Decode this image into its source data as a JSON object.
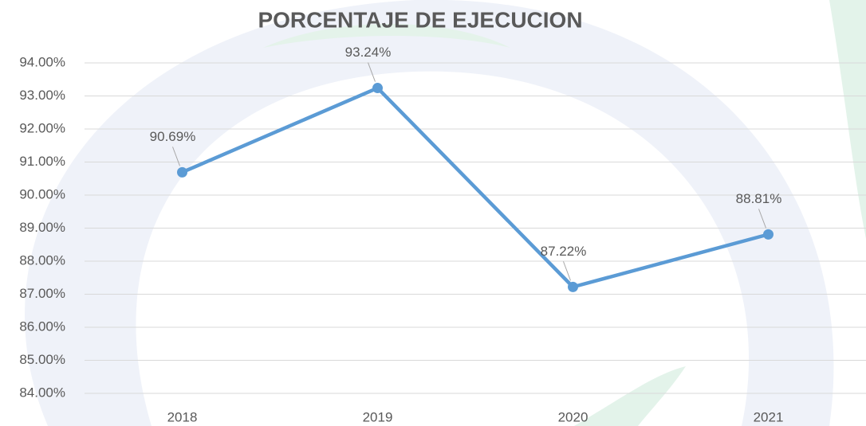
{
  "chart_data": {
    "type": "line",
    "title": "PORCENTAJE DE EJECUCION",
    "categories": [
      "2018",
      "2019",
      "2020",
      "2021"
    ],
    "series": [
      {
        "name": "PORCENTAJE DE EJECUCION",
        "color": "#5b9bd5",
        "values": [
          90.69,
          93.24,
          87.22,
          88.81
        ],
        "value_labels": [
          "90.69%",
          "93.24%",
          "87.22%",
          "88.81%"
        ]
      }
    ],
    "ylim": [
      84,
      94
    ],
    "yticks": [
      {
        "value": 84,
        "label": "84.00%"
      },
      {
        "value": 85,
        "label": "85.00%"
      },
      {
        "value": 86,
        "label": "86.00%"
      },
      {
        "value": 87,
        "label": "87.00%"
      },
      {
        "value": 88,
        "label": "88.00%"
      },
      {
        "value": 89,
        "label": "89.00%"
      },
      {
        "value": 90,
        "label": "90.00%"
      },
      {
        "value": 91,
        "label": "91.00%"
      },
      {
        "value": 92,
        "label": "92.00%"
      },
      {
        "value": 93,
        "label": "93.00%"
      },
      {
        "value": 94,
        "label": "94.00%"
      }
    ],
    "grid": true
  }
}
